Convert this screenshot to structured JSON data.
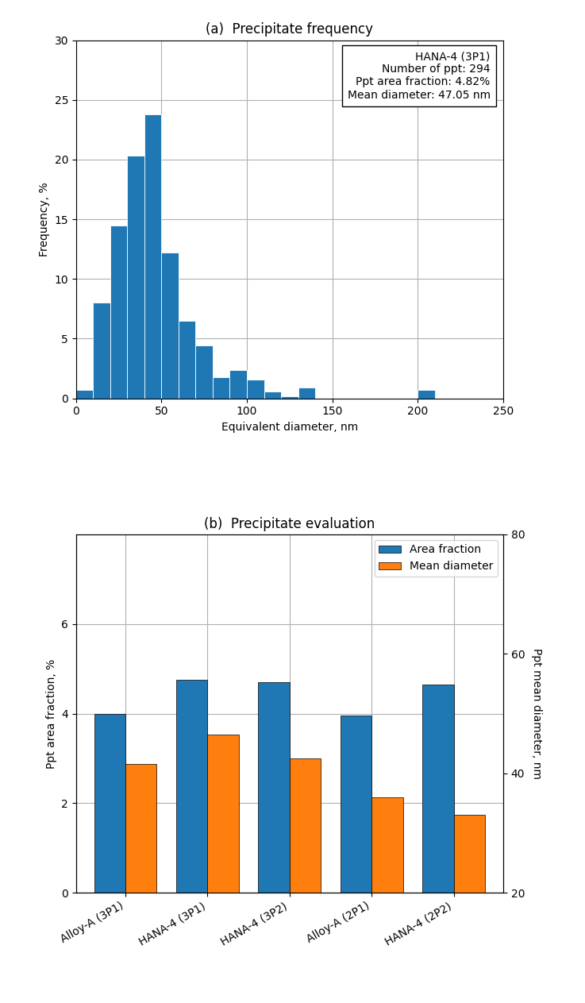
{
  "chart_data": [
    {
      "type": "histogram",
      "title": "(a)  Precipitate frequency",
      "xlabel": "Equivalent diameter, nm",
      "ylabel": "Frequency, %",
      "bins": [
        0,
        10,
        20,
        30,
        40,
        50,
        60,
        70,
        80,
        90,
        100,
        110,
        120,
        130,
        140,
        150,
        160,
        170,
        180,
        190,
        200,
        210
      ],
      "values": [
        0.7,
        8.0,
        14.5,
        20.3,
        23.8,
        12.2,
        6.5,
        4.4,
        1.8,
        2.4,
        1.6,
        0.6,
        0.2,
        0.9,
        0.0,
        0.0,
        0.0,
        0.0,
        0.0,
        0.0,
        0.7
      ],
      "xlim": [
        0,
        250
      ],
      "xticks": [
        0,
        50,
        100,
        150,
        200,
        250
      ],
      "ylim": [
        0,
        30
      ],
      "yticks": [
        0,
        5,
        10,
        15,
        20,
        25,
        30
      ],
      "grid": true,
      "annotations": [
        "HANA-4 (3P1)\nNumber of ppt: 294\nPpt area fraction: 4.82%\nMean diameter: 47.05 nm"
      ]
    },
    {
      "type": "bar",
      "title": "(b)  Precipitate evaluation",
      "categories": [
        "Alloy-A (3P1)",
        "HANA-4 (3P1)",
        "HANA-4 (3P2)",
        "Alloy-A (2P1)",
        "HANA-4 (2P2)"
      ],
      "ylabel": "Ppt area fraction, %",
      "y2label": "Ppt mean diameter, nm",
      "series": [
        {
          "name": "Area fraction",
          "values": [
            4.0,
            4.75,
            4.7,
            3.95,
            4.65
          ]
        },
        {
          "name": "Mean diameter",
          "values": [
            41.5,
            46.5,
            42.5,
            36.0,
            33.0
          ],
          "axis": "y2"
        }
      ],
      "ylim": [
        0,
        8
      ],
      "yticks": [
        0,
        2,
        4,
        6
      ],
      "y2lim": [
        20,
        80
      ],
      "y2ticks": [
        20,
        40,
        60,
        80
      ],
      "grid": true,
      "legend": "upper right"
    }
  ]
}
